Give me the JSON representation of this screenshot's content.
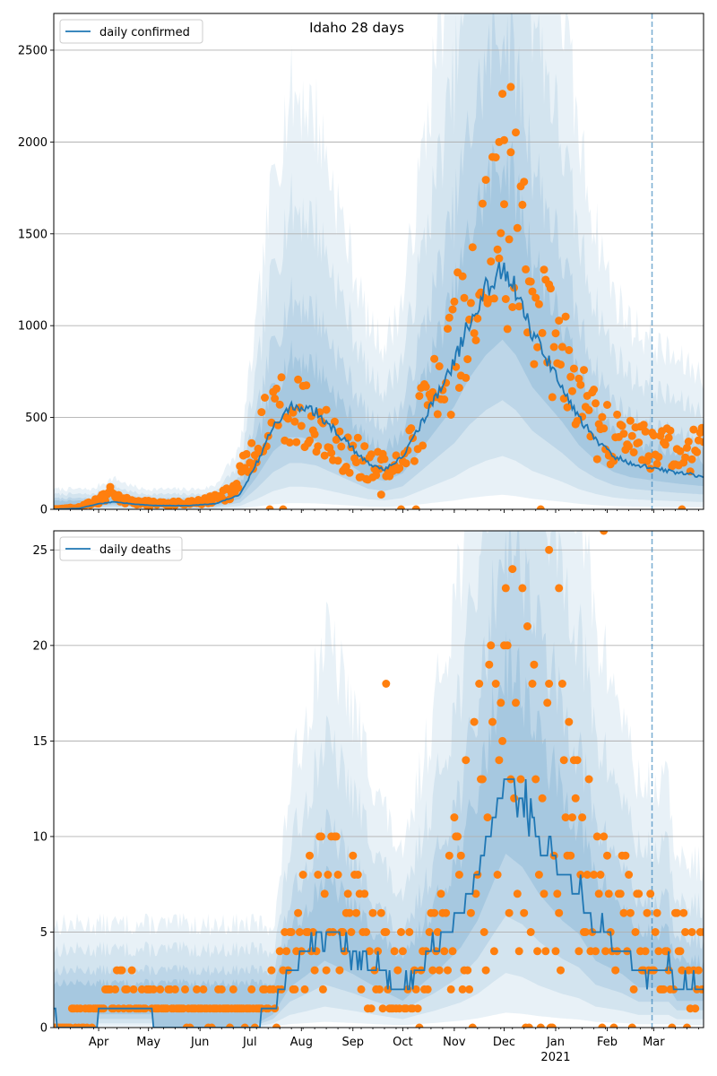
{
  "figure": {
    "title": "Idaho 28 days"
  },
  "colors": {
    "series": "#1f77b4",
    "observed": "#ff7f0e",
    "band": "#1f77b4",
    "grid": "#b0b0b0",
    "marker": "#1f77b4"
  },
  "x_axis": {
    "month_ticks": [
      {
        "date": "2020-04-01",
        "label": "Apr"
      },
      {
        "date": "2020-05-01",
        "label": "May"
      },
      {
        "date": "2020-06-01",
        "label": "Jun"
      },
      {
        "date": "2020-07-01",
        "label": "Jul"
      },
      {
        "date": "2020-08-01",
        "label": "Aug"
      },
      {
        "date": "2020-09-01",
        "label": "Sep"
      },
      {
        "date": "2020-10-01",
        "label": "Oct"
      },
      {
        "date": "2020-11-01",
        "label": "Nov"
      },
      {
        "date": "2020-12-01",
        "label": "Dec"
      },
      {
        "date": "2021-01-01",
        "label": "Jan"
      },
      {
        "date": "2021-02-01",
        "label": "Feb"
      },
      {
        "date": "2021-03-01",
        "label": "Mar"
      }
    ],
    "year_label": "2021",
    "xlim": [
      "2020-03-05",
      "2021-03-31"
    ],
    "forecast_start": "2021-02-28"
  },
  "chart_data": [
    {
      "type": "line",
      "legend": "daily confirmed",
      "legend_position": "top-left",
      "grid": "horizontal",
      "xlim": [
        "2020-03-05",
        "2021-03-31"
      ],
      "ylim": [
        0,
        2700
      ],
      "yticks": [
        0,
        500,
        1000,
        1500,
        2000,
        2500
      ],
      "mean_keyframes": [
        [
          "2020-03-05",
          0
        ],
        [
          "2020-03-20",
          5
        ],
        [
          "2020-04-01",
          30
        ],
        [
          "2020-04-10",
          40
        ],
        [
          "2020-04-20",
          30
        ],
        [
          "2020-05-05",
          20
        ],
        [
          "2020-05-25",
          20
        ],
        [
          "2020-06-10",
          30
        ],
        [
          "2020-06-25",
          80
        ],
        [
          "2020-07-05",
          250
        ],
        [
          "2020-07-15",
          450
        ],
        [
          "2020-07-25",
          560
        ],
        [
          "2020-08-01",
          560
        ],
        [
          "2020-08-10",
          530
        ],
        [
          "2020-08-20",
          440
        ],
        [
          "2020-09-01",
          330
        ],
        [
          "2020-09-10",
          250
        ],
        [
          "2020-09-20",
          220
        ],
        [
          "2020-10-01",
          280
        ],
        [
          "2020-10-10",
          430
        ],
        [
          "2020-10-20",
          600
        ],
        [
          "2020-11-01",
          800
        ],
        [
          "2020-11-10",
          1020
        ],
        [
          "2020-11-20",
          1200
        ],
        [
          "2020-11-30",
          1320
        ],
        [
          "2020-12-08",
          1200
        ],
        [
          "2020-12-18",
          950
        ],
        [
          "2020-12-28",
          800
        ],
        [
          "2021-01-05",
          680
        ],
        [
          "2021-01-15",
          500
        ],
        [
          "2021-01-25",
          380
        ],
        [
          "2021-02-05",
          290
        ],
        [
          "2021-02-15",
          250
        ],
        [
          "2021-02-28",
          225
        ],
        [
          "2021-03-15",
          200
        ],
        [
          "2021-03-31",
          180
        ]
      ],
      "observed_keyframes": [
        [
          "2020-03-05",
          0
        ],
        [
          "2020-03-20",
          10
        ],
        [
          "2020-04-01",
          50
        ],
        [
          "2020-04-08",
          90
        ],
        [
          "2020-04-20",
          40
        ],
        [
          "2020-05-10",
          30
        ],
        [
          "2020-06-01",
          40
        ],
        [
          "2020-06-20",
          90
        ],
        [
          "2020-07-01",
          300
        ],
        [
          "2020-07-12",
          480
        ],
        [
          "2020-07-25",
          560
        ],
        [
          "2020-08-05",
          530
        ],
        [
          "2020-08-20",
          380
        ],
        [
          "2020-09-05",
          280
        ],
        [
          "2020-09-20",
          230
        ],
        [
          "2020-10-05",
          380
        ],
        [
          "2020-10-20",
          620
        ],
        [
          "2020-11-01",
          850
        ],
        [
          "2020-11-12",
          1250
        ],
        [
          "2020-11-22",
          1550
        ],
        [
          "2020-12-01",
          1650
        ],
        [
          "2020-12-10",
          1450
        ],
        [
          "2020-12-20",
          1100
        ],
        [
          "2021-01-01",
          850
        ],
        [
          "2021-01-12",
          700
        ],
        [
          "2021-01-25",
          450
        ],
        [
          "2021-02-10",
          370
        ],
        [
          "2021-03-01",
          330
        ],
        [
          "2021-03-31",
          320
        ]
      ],
      "observed_spread": 0.4,
      "observed_outliers": [
        [
          "2020-12-05",
          2300
        ],
        [
          "2020-12-01",
          2010
        ],
        [
          "2020-11-28",
          2000
        ],
        [
          "2020-09-18",
          80
        ]
      ]
    },
    {
      "type": "line",
      "legend": "daily deaths",
      "legend_position": "top-left",
      "grid": "horizontal",
      "xlim": [
        "2020-03-05",
        "2021-03-31"
      ],
      "ylim": [
        0,
        26
      ],
      "yticks": [
        0,
        5,
        10,
        15,
        20,
        25
      ],
      "mean_keyframes": [
        [
          "2020-03-05",
          1
        ],
        [
          "2020-03-08",
          0
        ],
        [
          "2020-03-31",
          0
        ],
        [
          "2020-04-01",
          1
        ],
        [
          "2020-05-03",
          1
        ],
        [
          "2020-05-04",
          0
        ],
        [
          "2020-07-01",
          0
        ],
        [
          "2020-07-15",
          1
        ],
        [
          "2020-07-25",
          3
        ],
        [
          "2020-08-05",
          4
        ],
        [
          "2020-08-15",
          5
        ],
        [
          "2020-09-01",
          4
        ],
        [
          "2020-09-15",
          3
        ],
        [
          "2020-10-01",
          2
        ],
        [
          "2020-10-10",
          3
        ],
        [
          "2020-10-20",
          4
        ],
        [
          "2020-11-05",
          6
        ],
        [
          "2020-11-15",
          8
        ],
        [
          "2020-11-25",
          11
        ],
        [
          "2020-12-02",
          13
        ],
        [
          "2020-12-12",
          12
        ],
        [
          "2020-12-22",
          10
        ],
        [
          "2021-01-05",
          8
        ],
        [
          "2021-01-15",
          7
        ],
        [
          "2021-01-25",
          5
        ],
        [
          "2021-02-10",
          4
        ],
        [
          "2021-02-20",
          3
        ],
        [
          "2021-03-10",
          3
        ],
        [
          "2021-03-15",
          2
        ],
        [
          "2021-03-31",
          2
        ]
      ],
      "observed_keyframes": [
        [
          "2020-03-05",
          0
        ],
        [
          "2020-04-01",
          1
        ],
        [
          "2020-04-15",
          2
        ],
        [
          "2020-05-15",
          1
        ],
        [
          "2020-06-15",
          1
        ],
        [
          "2020-07-10",
          1
        ],
        [
          "2020-07-25",
          4
        ],
        [
          "2020-08-10",
          6
        ],
        [
          "2020-08-25",
          6
        ],
        [
          "2020-09-10",
          4
        ],
        [
          "2020-09-25",
          3
        ],
        [
          "2020-10-10",
          3
        ],
        [
          "2020-10-25",
          5
        ],
        [
          "2020-11-10",
          9
        ],
        [
          "2020-11-25",
          12
        ],
        [
          "2020-12-05",
          14
        ],
        [
          "2020-12-15",
          13
        ],
        [
          "2020-12-25",
          11
        ],
        [
          "2021-01-10",
          10
        ],
        [
          "2021-01-25",
          8
        ],
        [
          "2021-02-10",
          6
        ],
        [
          "2021-03-01",
          4
        ],
        [
          "2021-03-31",
          3
        ]
      ],
      "observed_spread": 0.75,
      "observed_outliers": [
        [
          "2021-01-30",
          26
        ],
        [
          "2020-12-28",
          25
        ],
        [
          "2020-09-21",
          18
        ],
        [
          "2021-01-03",
          23
        ]
      ]
    }
  ]
}
